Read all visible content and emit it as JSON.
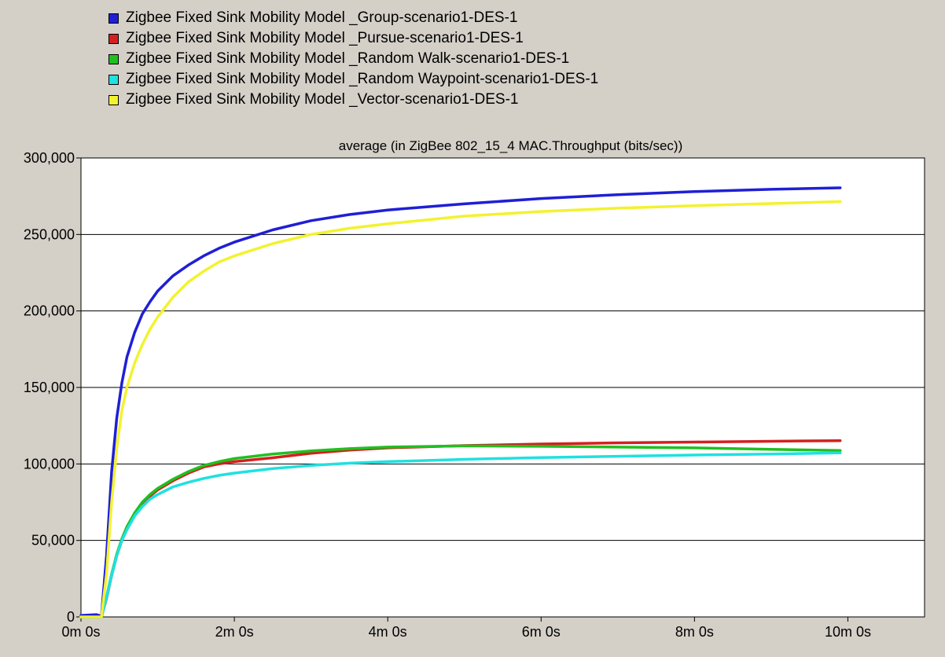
{
  "chart_data": {
    "type": "line",
    "title": "average (in ZigBee 802_15_4 MAC.Throughput (bits/sec))",
    "xlabel": "",
    "ylabel": "",
    "xlim_sec": [
      0,
      660
    ],
    "ylim": [
      0,
      300000
    ],
    "x_ticks": [
      {
        "sec": 0,
        "label": "0m 0s"
      },
      {
        "sec": 120,
        "label": "2m 0s"
      },
      {
        "sec": 240,
        "label": "4m 0s"
      },
      {
        "sec": 360,
        "label": "6m 0s"
      },
      {
        "sec": 480,
        "label": "8m 0s"
      },
      {
        "sec": 600,
        "label": "10m 0s"
      }
    ],
    "y_ticks": [
      {
        "value": 0,
        "label": "0"
      },
      {
        "value": 50000,
        "label": "50,000"
      },
      {
        "value": 100000,
        "label": "100,000"
      },
      {
        "value": 150000,
        "label": "150,000"
      },
      {
        "value": 200000,
        "label": "200,000"
      },
      {
        "value": 250000,
        "label": "250,000"
      },
      {
        "value": 300000,
        "label": "300,000"
      }
    ],
    "grid": "horizontal",
    "legend_position": "top-left",
    "x_unit": "seconds",
    "series": [
      {
        "name": "Zigbee Fixed Sink Mobility Model _Group-scenario1-DES-1",
        "color": "#1f1fd6",
        "x": [
          0,
          12,
          16,
          20,
          24,
          28,
          32,
          36,
          42,
          48,
          54,
          60,
          72,
          84,
          96,
          108,
          120,
          150,
          180,
          210,
          240,
          300,
          360,
          420,
          480,
          540,
          594
        ],
        "y": [
          1000,
          1500,
          500,
          40000,
          95000,
          130000,
          153000,
          170000,
          186000,
          198000,
          206000,
          213000,
          223000,
          230000,
          236000,
          241000,
          245000,
          253000,
          259000,
          263000,
          266000,
          270000,
          273500,
          276000,
          278000,
          279500,
          280500
        ]
      },
      {
        "name": "Zigbee Fixed Sink Mobility Model _Pursue-scenario1-DES-1",
        "color": "#d42020",
        "x": [
          0,
          16,
          20,
          24,
          28,
          32,
          36,
          42,
          48,
          54,
          60,
          72,
          84,
          96,
          108,
          120,
          150,
          180,
          210,
          240,
          300,
          360,
          420,
          480,
          540,
          594
        ],
        "y": [
          0,
          0,
          12000,
          27000,
          40000,
          50000,
          58000,
          67000,
          74000,
          79000,
          83000,
          89000,
          94000,
          98000,
          100000,
          101500,
          104000,
          107000,
          109000,
          110500,
          112000,
          113000,
          113800,
          114300,
          114800,
          115200
        ]
      },
      {
        "name": "Zigbee Fixed Sink Mobility Model _Random Walk-scenario1-DES-1",
        "color": "#20c020",
        "x": [
          0,
          16,
          20,
          24,
          28,
          32,
          36,
          42,
          48,
          54,
          60,
          72,
          84,
          96,
          108,
          120,
          150,
          180,
          210,
          240,
          300,
          360,
          420,
          480,
          540,
          594
        ],
        "y": [
          0,
          0,
          13000,
          28000,
          41000,
          51000,
          59000,
          68000,
          75000,
          80000,
          84000,
          90000,
          95000,
          99000,
          101500,
          103500,
          106500,
          108500,
          110000,
          111000,
          111800,
          111500,
          111000,
          110500,
          109500,
          108800
        ]
      },
      {
        "name": "Zigbee Fixed Sink Mobility Model _Random Waypoint-scenario1-DES-1",
        "color": "#20e0e0",
        "x": [
          0,
          16,
          20,
          24,
          28,
          32,
          36,
          42,
          48,
          54,
          60,
          72,
          84,
          96,
          108,
          120,
          150,
          180,
          210,
          240,
          300,
          360,
          420,
          480,
          540,
          594
        ],
        "y": [
          0,
          0,
          12500,
          27000,
          40000,
          50000,
          57000,
          66000,
          72000,
          77000,
          80000,
          85000,
          88000,
          90500,
          92500,
          94000,
          97000,
          99000,
          100500,
          101500,
          103000,
          104200,
          105000,
          105800,
          106500,
          107200
        ]
      },
      {
        "name": "Zigbee Fixed Sink Mobility Model _Vector-scenario1-DES-1",
        "color": "#f2f230",
        "x": [
          0,
          16,
          20,
          24,
          28,
          32,
          36,
          42,
          48,
          54,
          60,
          72,
          84,
          96,
          108,
          120,
          150,
          180,
          210,
          240,
          300,
          360,
          420,
          480,
          540,
          594
        ],
        "y": [
          0,
          0,
          28000,
          75000,
          110000,
          135000,
          150000,
          166000,
          178000,
          188000,
          196000,
          209000,
          219000,
          226000,
          232000,
          236000,
          244000,
          250000,
          254000,
          257000,
          262000,
          265000,
          267200,
          268800,
          270200,
          271500
        ]
      }
    ]
  }
}
